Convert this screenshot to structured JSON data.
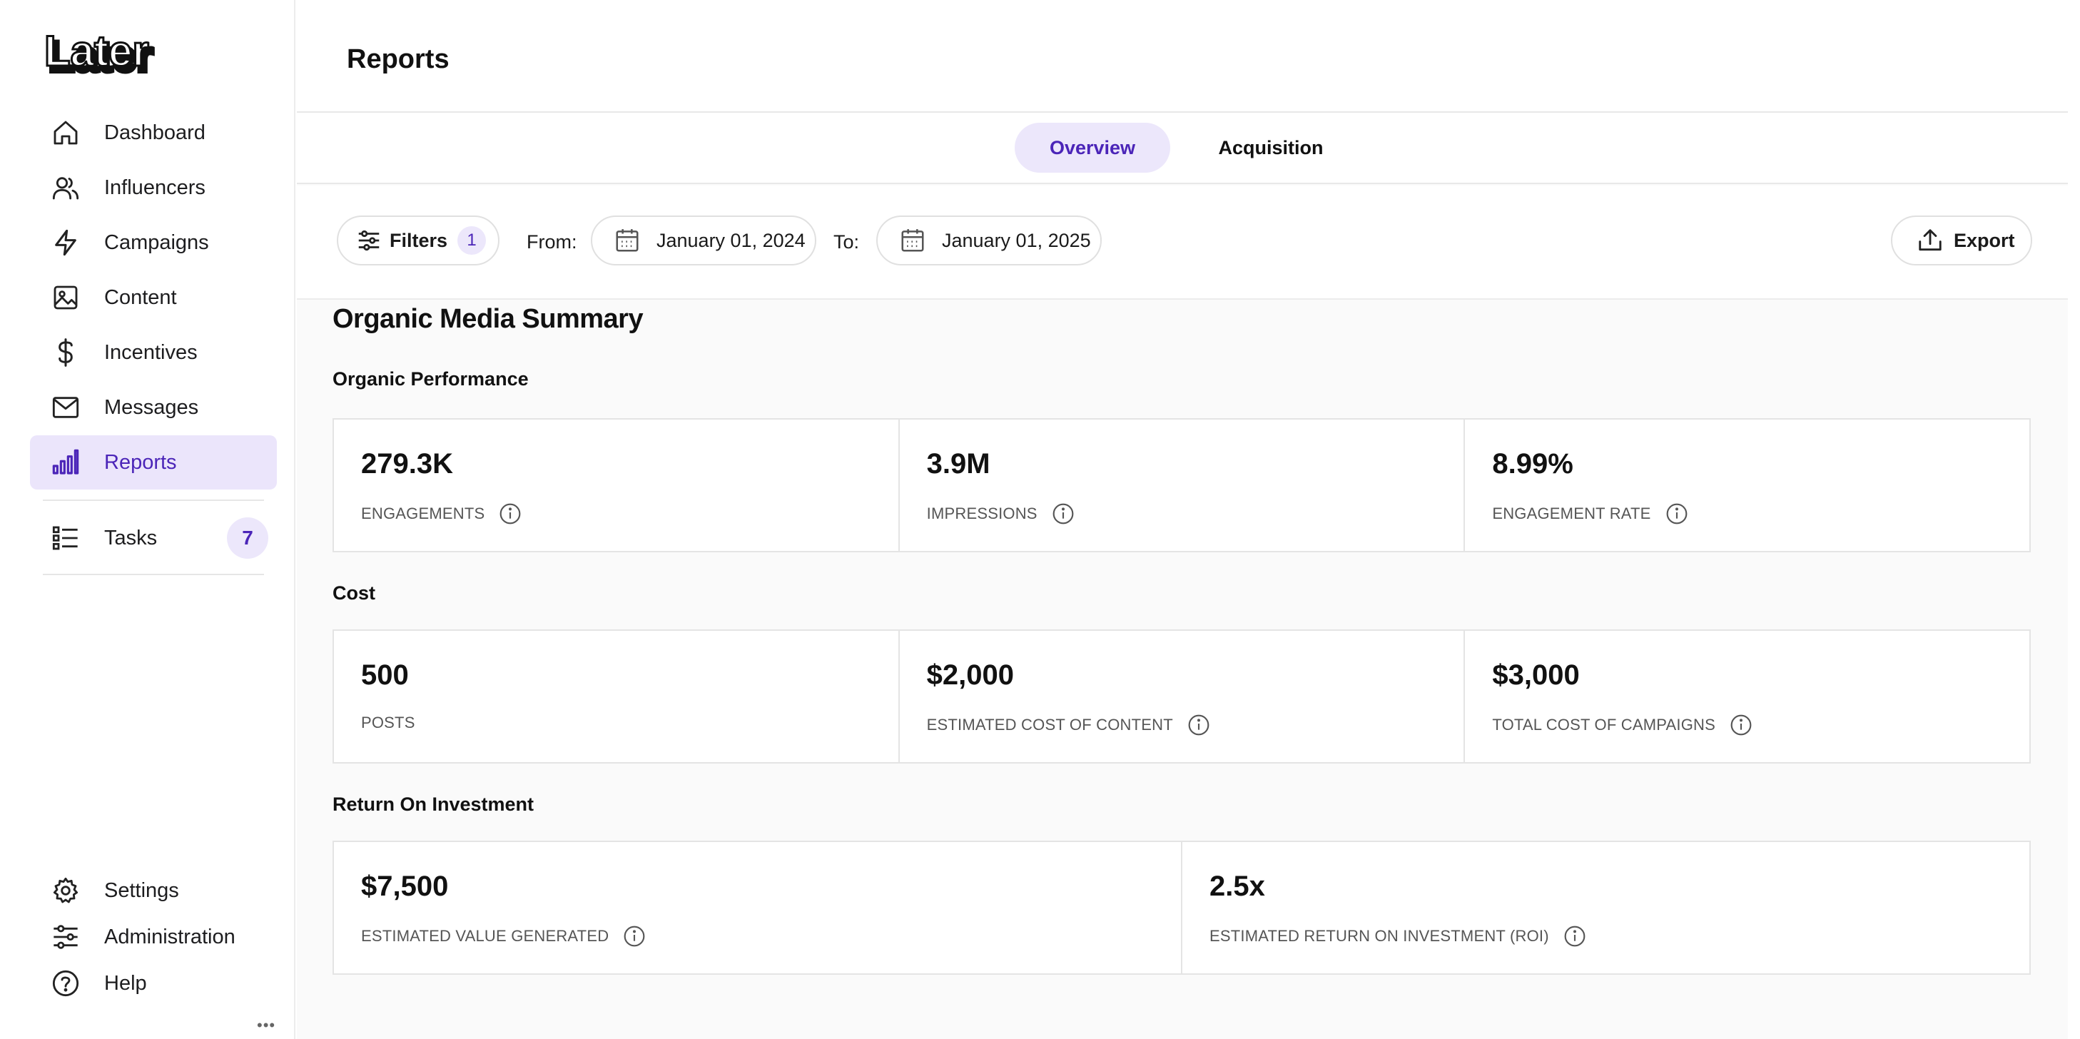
{
  "app": {
    "logo_text": "Later"
  },
  "sidebar": {
    "items": [
      {
        "label": "Dashboard",
        "icon": "home-icon"
      },
      {
        "label": "Influencers",
        "icon": "users-icon"
      },
      {
        "label": "Campaigns",
        "icon": "lightning-icon"
      },
      {
        "label": "Content",
        "icon": "image-icon"
      },
      {
        "label": "Incentives",
        "icon": "dollar-icon"
      },
      {
        "label": "Messages",
        "icon": "mail-icon"
      },
      {
        "label": "Reports",
        "icon": "bar-chart-icon",
        "active": true
      }
    ],
    "tasks": {
      "label": "Tasks",
      "icon": "list-icon",
      "count": "7"
    },
    "bottom": [
      {
        "label": "Settings",
        "icon": "gear-icon"
      },
      {
        "label": "Administration",
        "icon": "sliders-icon"
      },
      {
        "label": "Help",
        "icon": "help-icon"
      }
    ],
    "more": "•••"
  },
  "header": {
    "title": "Reports"
  },
  "tabs": [
    {
      "label": "Overview",
      "active": true
    },
    {
      "label": "Acquisition",
      "active": false
    }
  ],
  "toolbar": {
    "filters_label": "Filters",
    "filters_count": "1",
    "from_label": "From:",
    "from_date": "January 01, 2024",
    "to_label": "To:",
    "to_date": "January 01, 2025",
    "export_label": "Export"
  },
  "summary": {
    "title": "Organic Media Summary",
    "performance": {
      "title": "Organic Performance",
      "cards": [
        {
          "value": "279.3K",
          "label": "ENGAGEMENTS",
          "info": true
        },
        {
          "value": "3.9M",
          "label": "IMPRESSIONS",
          "info": true
        },
        {
          "value": "8.99%",
          "label": "ENGAGEMENT RATE",
          "info": true
        }
      ]
    },
    "cost": {
      "title": "Cost",
      "cards": [
        {
          "value": "500",
          "label": "POSTS",
          "info": false
        },
        {
          "value": "$2,000",
          "label": "ESTIMATED COST OF CONTENT",
          "info": true
        },
        {
          "value": "$3,000",
          "label": "TOTAL COST OF CAMPAIGNS",
          "info": true
        }
      ]
    },
    "roi": {
      "title": "Return On Investment",
      "cards": [
        {
          "value": "$7,500",
          "label": "ESTIMATED VALUE GENERATED",
          "info": true
        },
        {
          "value": "2.5x",
          "label": "ESTIMATED RETURN ON INVESTMENT (ROI)",
          "info": true
        }
      ]
    }
  },
  "colors": {
    "accent": "#4b25b8",
    "accent_bg": "#ebe5fb"
  }
}
